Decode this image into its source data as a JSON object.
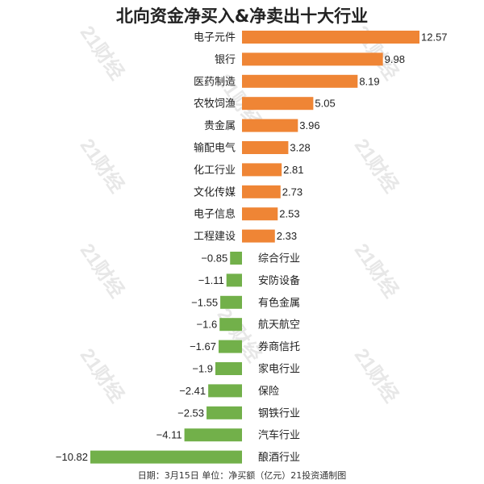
{
  "chart_data": {
    "type": "bar",
    "orientation": "horizontal",
    "title": "北向资金净买入&净卖出十大行业",
    "footnote": "日期：3月15日 单位：净买额（亿元）21投资通制图",
    "watermark": "21财经",
    "categories": [
      "电子元件",
      "银行",
      "医药制造",
      "农牧饲渔",
      "贵金属",
      "输配电气",
      "化工行业",
      "文化传媒",
      "电子信息",
      "工程建设",
      "综合行业",
      "安防设备",
      "有色金属",
      "航天航空",
      "券商信托",
      "家电行业",
      "保险",
      "钢铁行业",
      "汽车行业",
      "酿酒行业"
    ],
    "values": [
      12.57,
      9.98,
      8.19,
      5.05,
      3.96,
      3.28,
      2.81,
      2.73,
      2.53,
      2.33,
      -0.85,
      -1.11,
      -1.55,
      -1.6,
      -1.67,
      -1.9,
      -2.41,
      -2.53,
      -4.11,
      -10.82
    ],
    "value_labels": [
      "12.57",
      "9.98",
      "8.19",
      "5.05",
      "3.96",
      "3.28",
      "2.81",
      "2.73",
      "2.53",
      "2.33",
      "−0.85",
      "−1.11",
      "−1.55",
      "−1.6",
      "−1.67",
      "−1.9",
      "−2.41",
      "−2.53",
      "−4.11",
      "−10.82"
    ],
    "positive_color": "#ef8535",
    "negative_color": "#72b04a",
    "xlim": [
      -10.82,
      12.57
    ],
    "grid": false
  }
}
